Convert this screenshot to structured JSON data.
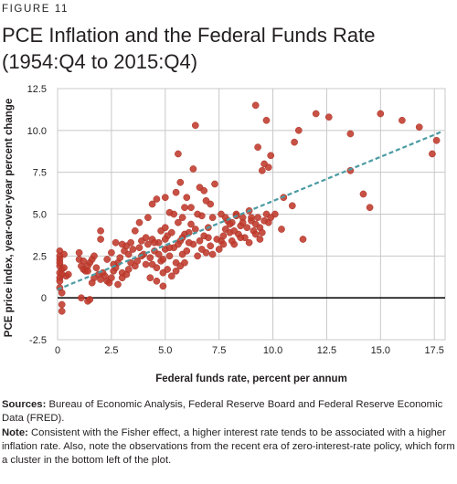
{
  "figure_label": "FIGURE 11",
  "title_line1": "PCE Inflation and the Federal Funds Rate",
  "title_line2": "(1954:Q4 to 2015:Q4)",
  "sources_label": "Sources:",
  "sources_text": "Bureau of Economic Analysis, Federal Reserve Board and Federal Reserve Economic Data (FRED).",
  "note_label": "Note:",
  "note_text": "Consistent with the Fisher effect, a higher interest rate tends to be associated with a higher inflation rate. Also, note the observations from the recent era of zero-interest-rate policy, which form a cluster in the bottom left of the plot.",
  "colors": {
    "points": "#c0392b",
    "point_stroke": "#a93226",
    "trend": "#4a9ba3",
    "grid": "#c8c8c8",
    "zero_line": "#000000"
  },
  "chart_data": {
    "type": "scatter",
    "xlabel": "Federal funds rate, percent per annum",
    "ylabel": "PCE price index, year-over-year percent change",
    "xlim": [
      0,
      18
    ],
    "ylim": [
      -2.5,
      12.5
    ],
    "x_ticks": [
      0,
      2.5,
      5.0,
      7.5,
      10.0,
      12.5,
      15.0,
      17.5
    ],
    "x_tick_labels": [
      "0",
      "2.5",
      "5.0",
      "7.5",
      "10.0",
      "12.5",
      "15.0",
      "17.5"
    ],
    "y_ticks": [
      -2.5,
      0,
      2.5,
      5.0,
      7.5,
      10.0,
      12.5
    ],
    "y_tick_labels": [
      "-2.5",
      "0",
      "2.5",
      "5.0",
      "7.5",
      "10.0",
      "12.5"
    ],
    "grid": true,
    "trend_line": {
      "style": "dashed",
      "x": [
        0,
        17.8
      ],
      "y": [
        0.5,
        9.9
      ]
    },
    "points": [
      [
        0.1,
        2.8
      ],
      [
        0.1,
        2.5
      ],
      [
        0.1,
        2.3
      ],
      [
        0.1,
        1.9
      ],
      [
        0.1,
        1.5
      ],
      [
        0.1,
        1.2
      ],
      [
        0.1,
        1.0
      ],
      [
        0.1,
        0.6
      ],
      [
        0.2,
        0.3
      ],
      [
        0.2,
        -0.4
      ],
      [
        0.2,
        -0.8
      ],
      [
        0.2,
        1.7
      ],
      [
        0.1,
        2.1
      ],
      [
        0.2,
        1.4
      ],
      [
        0.3,
        1.8
      ],
      [
        0.4,
        1.3
      ],
      [
        0.5,
        1.4
      ],
      [
        0.3,
        2.6
      ],
      [
        1.0,
        2.3
      ],
      [
        1.1,
        1.9
      ],
      [
        1.2,
        1.7
      ],
      [
        1.3,
        1.6
      ],
      [
        1.5,
        2.1
      ],
      [
        1.6,
        2.3
      ],
      [
        1.7,
        2.5
      ],
      [
        1.8,
        1.8
      ],
      [
        1.0,
        2.7
      ],
      [
        1.2,
        2.2
      ],
      [
        1.4,
        1.9
      ],
      [
        1.1,
        0.0
      ],
      [
        1.4,
        -0.2
      ],
      [
        1.5,
        -0.1
      ],
      [
        1.7,
        1.2
      ],
      [
        1.9,
        1.4
      ],
      [
        1.6,
        0.9
      ],
      [
        1.4,
        1.6
      ],
      [
        2.0,
        3.5
      ],
      [
        2.0,
        1.1
      ],
      [
        2.0,
        4.0
      ],
      [
        2.1,
        1.5
      ],
      [
        2.2,
        1.3
      ],
      [
        2.3,
        1.0
      ],
      [
        2.4,
        0.9
      ],
      [
        2.5,
        1.2
      ],
      [
        2.6,
        1.6
      ],
      [
        2.7,
        1.8
      ],
      [
        2.8,
        2.1
      ],
      [
        2.9,
        2.4
      ],
      [
        3.0,
        1.5
      ],
      [
        3.0,
        1.2
      ],
      [
        3.1,
        2.8
      ],
      [
        3.2,
        3.1
      ],
      [
        3.3,
        2.6
      ],
      [
        3.4,
        3.3
      ],
      [
        3.5,
        2.9
      ],
      [
        3.6,
        1.9
      ],
      [
        3.7,
        2.2
      ],
      [
        3.8,
        3.0
      ],
      [
        3.9,
        3.4
      ],
      [
        2.3,
        2.3
      ],
      [
        2.5,
        2.7
      ],
      [
        2.7,
        3.3
      ],
      [
        2.8,
        0.8
      ],
      [
        3.0,
        3.2
      ],
      [
        3.2,
        1.4
      ],
      [
        3.4,
        2.1
      ],
      [
        3.6,
        4.0
      ],
      [
        3.8,
        4.5
      ],
      [
        3.9,
        2.5
      ],
      [
        3.3,
        1.7
      ],
      [
        2.6,
        2.0
      ],
      [
        4.0,
        2.6
      ],
      [
        4.1,
        2.0
      ],
      [
        4.2,
        3.2
      ],
      [
        4.3,
        2.4
      ],
      [
        4.4,
        3.5
      ],
      [
        4.5,
        2.8
      ],
      [
        4.6,
        1.8
      ],
      [
        4.7,
        3.3
      ],
      [
        4.8,
        2.2
      ],
      [
        4.9,
        1.5
      ],
      [
        5.0,
        2.9
      ],
      [
        5.0,
        4.2
      ],
      [
        5.1,
        3.7
      ],
      [
        5.2,
        2.5
      ],
      [
        5.3,
        3.9
      ],
      [
        5.4,
        3.0
      ],
      [
        5.5,
        2.1
      ],
      [
        5.6,
        4.5
      ],
      [
        5.7,
        3.4
      ],
      [
        5.8,
        2.6
      ],
      [
        5.9,
        3.8
      ],
      [
        4.2,
        4.8
      ],
      [
        4.4,
        5.6
      ],
      [
        4.6,
        5.9
      ],
      [
        4.8,
        4.0
      ],
      [
        5.0,
        6.0
      ],
      [
        5.2,
        5.1
      ],
      [
        5.4,
        5.0
      ],
      [
        5.5,
        6.3
      ],
      [
        5.6,
        8.6
      ],
      [
        5.7,
        6.9
      ],
      [
        5.8,
        4.8
      ],
      [
        5.9,
        5.4
      ],
      [
        4.1,
        3.6
      ],
      [
        4.3,
        1.2
      ],
      [
        4.6,
        1.0
      ],
      [
        4.9,
        0.7
      ],
      [
        5.1,
        1.7
      ],
      [
        5.3,
        1.3
      ],
      [
        5.5,
        1.6
      ],
      [
        5.7,
        1.9
      ],
      [
        5.9,
        2.1
      ],
      [
        4.9,
        2.3
      ],
      [
        5.2,
        3.0
      ],
      [
        4.5,
        3.3
      ],
      [
        5.0,
        3.5
      ],
      [
        5.6,
        3.2
      ],
      [
        5.8,
        3.6
      ],
      [
        4.4,
        2.0
      ],
      [
        4.7,
        2.6
      ],
      [
        6.0,
        2.8
      ],
      [
        6.1,
        3.9
      ],
      [
        6.2,
        4.4
      ],
      [
        6.3,
        3.2
      ],
      [
        6.4,
        4.1
      ],
      [
        6.5,
        2.5
      ],
      [
        6.6,
        3.4
      ],
      [
        6.7,
        4.9
      ],
      [
        6.8,
        3.7
      ],
      [
        6.9,
        2.7
      ],
      [
        7.0,
        4.2
      ],
      [
        7.1,
        3.1
      ],
      [
        7.2,
        2.6
      ],
      [
        6.4,
        10.3
      ],
      [
        6.3,
        7.7
      ],
      [
        6.6,
        6.6
      ],
      [
        6.8,
        6.4
      ],
      [
        7.1,
        5.6
      ],
      [
        7.3,
        6.8
      ],
      [
        6.2,
        5.4
      ],
      [
        6.0,
        6.0
      ],
      [
        6.5,
        5.0
      ],
      [
        6.9,
        5.8
      ],
      [
        7.2,
        4.8
      ],
      [
        6.1,
        3.3
      ],
      [
        6.7,
        2.9
      ],
      [
        7.0,
        3.6
      ],
      [
        7.5,
        2.9
      ],
      [
        7.6,
        3.4
      ],
      [
        7.7,
        3.7
      ],
      [
        7.8,
        4.1
      ],
      [
        7.9,
        4.6
      ],
      [
        8.0,
        3.9
      ],
      [
        8.1,
        4.5
      ],
      [
        8.2,
        3.2
      ],
      [
        8.3,
        5.0
      ],
      [
        8.4,
        3.8
      ],
      [
        8.5,
        4.3
      ],
      [
        8.6,
        4.8
      ],
      [
        8.7,
        3.6
      ],
      [
        8.8,
        4.2
      ],
      [
        8.9,
        3.3
      ],
      [
        9.0,
        4.6
      ],
      [
        9.1,
        4.0
      ],
      [
        9.2,
        3.8
      ],
      [
        7.6,
        5.0
      ],
      [
        7.8,
        4.8
      ],
      [
        8.0,
        4.4
      ],
      [
        8.3,
        4.9
      ],
      [
        8.6,
        4.5
      ],
      [
        8.9,
        5.2
      ],
      [
        9.2,
        4.4
      ],
      [
        9.4,
        4.2
      ],
      [
        9.5,
        3.9
      ],
      [
        9.6,
        4.6
      ],
      [
        9.7,
        5.0
      ],
      [
        7.7,
        3.2
      ],
      [
        8.2,
        4.0
      ],
      [
        8.5,
        3.6
      ],
      [
        9.0,
        4.8
      ],
      [
        9.4,
        3.5
      ],
      [
        9.3,
        4.8
      ],
      [
        8.1,
        3.4
      ],
      [
        7.4,
        3.5
      ],
      [
        9.2,
        11.5
      ],
      [
        9.7,
        10.6
      ],
      [
        9.3,
        9.0
      ],
      [
        9.6,
        8.0
      ],
      [
        9.9,
        8.5
      ],
      [
        9.5,
        7.6
      ],
      [
        9.8,
        7.8
      ],
      [
        10.5,
        6.0
      ],
      [
        10.4,
        4.1
      ],
      [
        11.0,
        9.3
      ],
      [
        11.2,
        10.0
      ],
      [
        11.4,
        3.5
      ],
      [
        10.9,
        5.5
      ],
      [
        10.1,
        5.0
      ],
      [
        12.0,
        11.0
      ],
      [
        12.6,
        10.8
      ],
      [
        13.6,
        9.8
      ],
      [
        13.6,
        7.6
      ],
      [
        14.2,
        6.2
      ],
      [
        14.5,
        5.4
      ],
      [
        15.0,
        11.0
      ],
      [
        16.0,
        10.6
      ],
      [
        16.8,
        10.2
      ],
      [
        17.6,
        9.4
      ],
      [
        17.4,
        8.6
      ],
      [
        9.8,
        4.5
      ],
      [
        9.9,
        4.8
      ]
    ]
  }
}
